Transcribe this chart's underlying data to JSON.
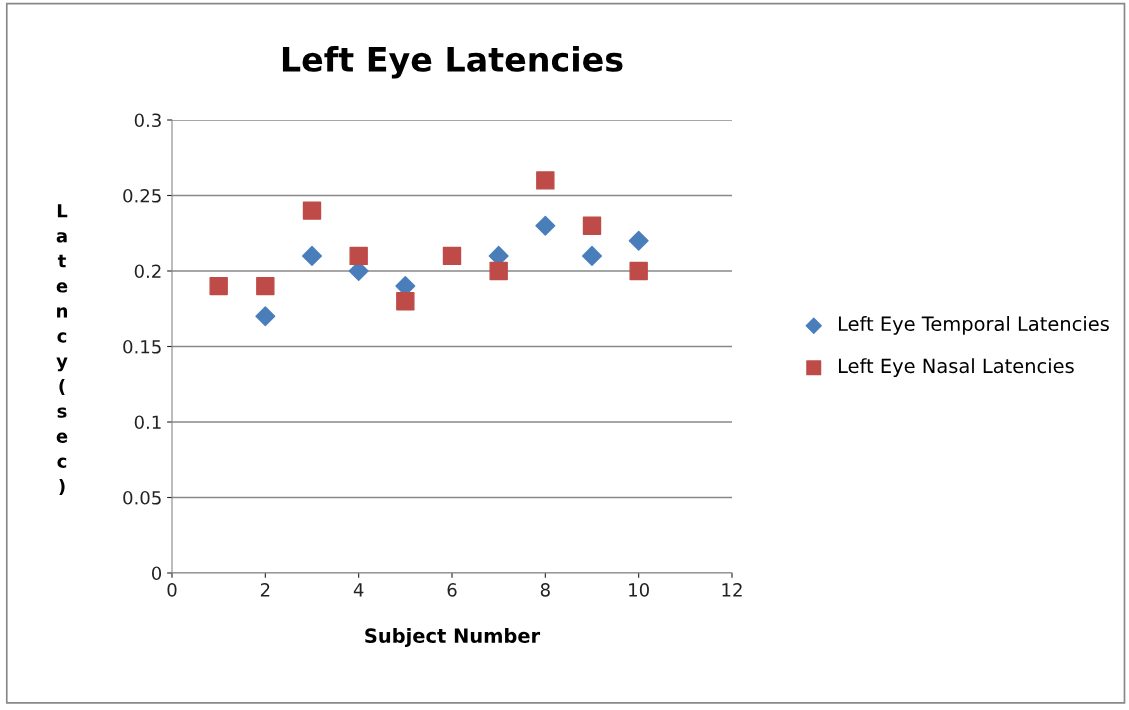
{
  "chart_data": {
    "type": "scatter",
    "title": "Left Eye Latencies",
    "xlabel": "Subject Number",
    "ylabel": "Latency (sec)",
    "x": [
      1,
      2,
      3,
      4,
      5,
      6,
      7,
      8,
      9,
      10
    ],
    "series": [
      {
        "name": "Left Eye Temporal Latencies",
        "color": "#4a7ebb",
        "marker": "diamond",
        "values": [
          null,
          0.17,
          0.21,
          0.2,
          0.19,
          null,
          0.21,
          0.23,
          0.21,
          0.22
        ]
      },
      {
        "name": "Left Eye Nasal Latencies",
        "color": "#be4b48",
        "marker": "square",
        "values": [
          0.19,
          0.19,
          0.24,
          0.21,
          0.18,
          0.21,
          0.2,
          0.26,
          0.23,
          0.2
        ]
      }
    ],
    "xlim": [
      0,
      12
    ],
    "xticks": [
      0,
      2,
      4,
      6,
      8,
      10,
      12
    ],
    "ylim": [
      0,
      0.3
    ],
    "yticks": [
      0,
      0.05,
      0.1,
      0.15,
      0.2,
      0.25,
      0.3
    ],
    "grid": "y",
    "legend": "right"
  }
}
